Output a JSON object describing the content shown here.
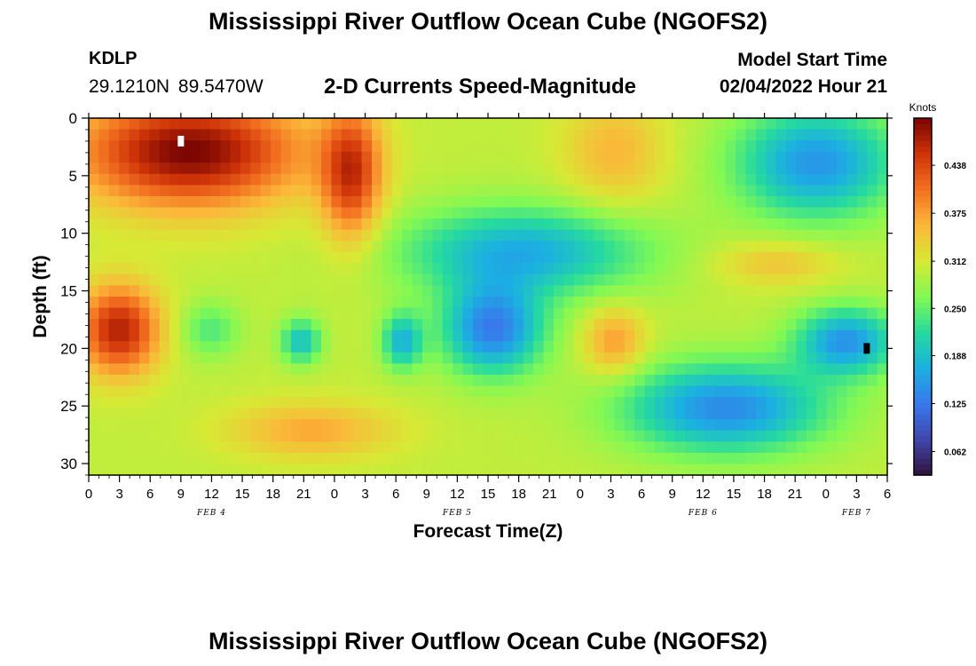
{
  "header": {
    "title": "Mississippi River Outflow Ocean Cube (NGOFS2)",
    "station_id": "KDLP",
    "station_position": "29.1210N  89.5470W",
    "subtitle": "2-D Currents Speed-Magnitude",
    "model_start_label": "Model Start Time",
    "model_start_time": "02/04/2022 Hour 21"
  },
  "footer": {
    "title": "Mississippi River Outflow Ocean Cube (NGOFS2)"
  },
  "chart_data": {
    "type": "heatmap",
    "xlabel": "Forecast Time(Z)",
    "ylabel": "Depth (ft)",
    "x_unit": "forecast hours from Feb 4 00Z",
    "xlim": [
      0,
      78
    ],
    "ylim": [
      0,
      31
    ],
    "y_inverted": true,
    "x_tick_values": [
      0,
      3,
      6,
      9,
      12,
      15,
      18,
      21,
      24,
      27,
      30,
      33,
      36,
      39,
      42,
      45,
      48,
      51,
      54,
      57,
      60,
      63,
      66,
      69,
      72,
      75,
      78
    ],
    "x_tick_labels": [
      "0",
      "3",
      "6",
      "9",
      "12",
      "15",
      "18",
      "21",
      "0",
      "3",
      "6",
      "9",
      "12",
      "15",
      "18",
      "21",
      "0",
      "3",
      "6",
      "9",
      "12",
      "15",
      "18",
      "21",
      "0",
      "3",
      "6"
    ],
    "y_tick_values": [
      0,
      5,
      10,
      15,
      20,
      25,
      30
    ],
    "y_tick_labels": [
      "0",
      "5",
      "10",
      "15",
      "20",
      "25",
      "30"
    ],
    "date_labels": [
      {
        "x": 12,
        "text": "FEB 4"
      },
      {
        "x": 36,
        "text": "FEB 5"
      },
      {
        "x": 60,
        "text": "FEB 6"
      },
      {
        "x": 75,
        "text": "FEB 7"
      }
    ],
    "colorbar": {
      "label": "Knots",
      "min": 0.031,
      "max": 0.5,
      "ticks": [
        0.062,
        0.125,
        0.188,
        0.25,
        0.312,
        0.375,
        0.438
      ],
      "tick_labels": [
        "0.062",
        "0.125",
        "0.188",
        "0.250",
        "0.312",
        "0.375",
        "0.438"
      ]
    },
    "grid": false,
    "nx": 79,
    "ny": 32,
    "base_value": 0.3,
    "features": [
      {
        "x": 10,
        "y": 3,
        "sx": 11,
        "sy": 5,
        "amp": 0.2
      },
      {
        "x": 26,
        "y": 5,
        "sx": 3,
        "sy": 6,
        "amp": 0.15
      },
      {
        "x": 3,
        "y": 19,
        "sx": 4,
        "sy": 4,
        "amp": 0.17
      },
      {
        "x": 12,
        "y": 19,
        "sx": 3,
        "sy": 2.5,
        "amp": -0.06
      },
      {
        "x": 21,
        "y": 20,
        "sx": 2,
        "sy": 2,
        "amp": -0.11
      },
      {
        "x": 31,
        "y": 20,
        "sx": 2,
        "sy": 2.5,
        "amp": -0.12
      },
      {
        "x": 22,
        "y": 28,
        "sx": 8,
        "sy": 2.5,
        "amp": 0.07
      },
      {
        "x": 43,
        "y": 12,
        "sx": 12,
        "sy": 4,
        "amp": -0.13
      },
      {
        "x": 40,
        "y": 19,
        "sx": 5,
        "sy": 4,
        "amp": -0.17
      },
      {
        "x": 52,
        "y": 3,
        "sx": 5,
        "sy": 5,
        "amp": 0.06
      },
      {
        "x": 52,
        "y": 20,
        "sx": 3,
        "sy": 3,
        "amp": 0.08
      },
      {
        "x": 63,
        "y": 26,
        "sx": 10,
        "sy": 4,
        "amp": -0.16
      },
      {
        "x": 72,
        "y": 4,
        "sx": 8,
        "sy": 5,
        "amp": -0.15
      },
      {
        "x": 75,
        "y": 20,
        "sx": 5,
        "sy": 3,
        "amp": -0.15
      },
      {
        "x": 68,
        "y": 13,
        "sx": 6,
        "sy": 2,
        "amp": 0.05
      }
    ],
    "markers": [
      {
        "name": "white-marker",
        "x": 9,
        "y": 2,
        "color": "#ffffff"
      },
      {
        "name": "black-marker",
        "x": 76,
        "y": 20,
        "color": "#000000"
      }
    ]
  }
}
